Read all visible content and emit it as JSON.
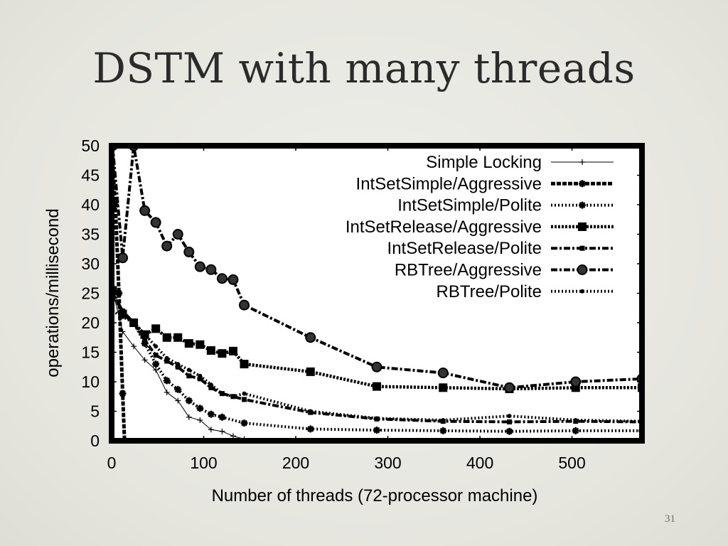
{
  "slide": {
    "title": "DSTM with many threads",
    "page_number": "31"
  },
  "chart_data": {
    "type": "line",
    "xlabel": "Number of threads (72-processor machine)",
    "ylabel": "operations/millisecond",
    "xlim": [
      0,
      576
    ],
    "ylim": [
      0,
      50
    ],
    "xticks": [
      0,
      100,
      200,
      300,
      400,
      500
    ],
    "yticks": [
      0,
      5,
      10,
      15,
      20,
      25,
      30,
      35,
      40,
      45,
      50
    ],
    "grid": false,
    "legend_position": "top-right",
    "series": [
      {
        "name": "Simple Locking",
        "line": "thin",
        "marker": "plus",
        "x": [
          1,
          12,
          24,
          36,
          48,
          60,
          72,
          84,
          96,
          108,
          120,
          132,
          144
        ],
        "y": [
          25.5,
          18.5,
          16,
          13.7,
          12,
          8.2,
          6.8,
          4,
          3.5,
          1.9,
          1.6,
          0.8,
          0.3
        ]
      },
      {
        "name": "IntSetSimple/Aggressive",
        "line": "dense",
        "marker": "star",
        "x": [
          0,
          4,
          8,
          12,
          14
        ],
        "y": [
          50,
          40,
          25,
          8,
          0
        ]
      },
      {
        "name": "IntSetSimple/Polite",
        "line": "dotted",
        "marker": "star",
        "x": [
          1,
          12,
          24,
          36,
          48,
          60,
          72,
          84,
          96,
          108,
          120,
          144,
          216,
          288,
          360,
          432,
          504,
          576
        ],
        "y": [
          25,
          21.5,
          20,
          16.5,
          13,
          10.2,
          8.7,
          6.8,
          5.5,
          4.5,
          4,
          3,
          2,
          1.8,
          1.7,
          1.6,
          1.7,
          1.7
        ]
      },
      {
        "name": "IntSetRelease/Aggressive",
        "line": "dense-dotted",
        "marker": "square",
        "x": [
          1,
          12,
          24,
          36,
          48,
          60,
          72,
          84,
          96,
          108,
          120,
          132,
          144,
          216,
          288,
          360,
          432,
          504,
          576
        ],
        "y": [
          25.5,
          21.5,
          20,
          18,
          19,
          17.5,
          17.5,
          16.5,
          16.3,
          15.3,
          14.8,
          15.2,
          13,
          11.7,
          9.2,
          9,
          8.8,
          9,
          9
        ]
      },
      {
        "name": "IntSetRelease/Polite",
        "line": "dash-dot",
        "marker": "small-square",
        "x": [
          1,
          12,
          24,
          36,
          48,
          60,
          72,
          84,
          96,
          108,
          120,
          132,
          144,
          216,
          288,
          360,
          432,
          504,
          576
        ],
        "y": [
          25,
          22,
          20,
          17,
          14.5,
          13.5,
          12.5,
          11,
          10.5,
          9,
          8,
          7.5,
          7,
          4.8,
          3.7,
          3.3,
          3.2,
          3.3,
          3.2
        ]
      },
      {
        "name": "RBTree/Aggressive",
        "line": "dash-dot",
        "marker": "circle",
        "x": [
          1,
          12,
          24,
          36,
          48,
          60,
          72,
          84,
          96,
          108,
          120,
          132,
          144,
          216,
          288,
          360,
          432,
          504,
          576
        ],
        "y": [
          50,
          31,
          50,
          39,
          37,
          33,
          35,
          32,
          29.5,
          29,
          27.5,
          27.3,
          23,
          17.5,
          12.5,
          11.5,
          9,
          10,
          10.5
        ]
      },
      {
        "name": "RBTree/Polite",
        "line": "dotted",
        "marker": "dot",
        "x": [
          1,
          12,
          24,
          36,
          48,
          60,
          72,
          84,
          96,
          108,
          120,
          132,
          144,
          216,
          288,
          360,
          432,
          504,
          576
        ],
        "y": [
          22,
          21,
          20,
          18,
          16,
          14,
          13,
          12,
          11,
          9.5,
          8,
          7.5,
          8,
          5,
          3.8,
          3.5,
          4.2,
          3.5,
          3.3
        ]
      }
    ]
  }
}
